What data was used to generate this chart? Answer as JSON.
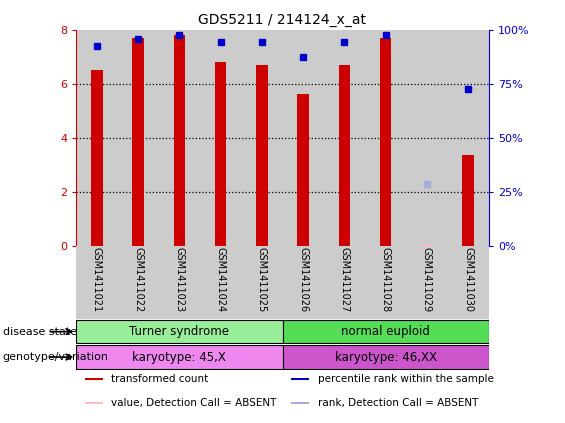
{
  "title": "GDS5211 / 214124_x_at",
  "samples": [
    "GSM1411021",
    "GSM1411022",
    "GSM1411023",
    "GSM1411024",
    "GSM1411025",
    "GSM1411026",
    "GSM1411027",
    "GSM1411028",
    "GSM1411029",
    "GSM1411030"
  ],
  "bar_values": [
    6.5,
    7.7,
    7.8,
    6.8,
    6.7,
    5.6,
    6.7,
    7.7,
    0.07,
    3.35
  ],
  "rank_values_right": [
    92.5,
    95.6,
    97.5,
    94.4,
    94.4,
    87.5,
    94.4,
    97.5,
    28.75,
    72.5
  ],
  "absent_bar_idx": 8,
  "absent_rank_idx": 8,
  "bar_color": "#cc0000",
  "rank_color": "#0000cc",
  "absent_bar_color": "#ffbbbb",
  "absent_rank_color": "#aaaadd",
  "ylim_left": [
    0,
    8
  ],
  "ylim_right": [
    0,
    100
  ],
  "yticks_left": [
    0,
    2,
    4,
    6,
    8
  ],
  "yticks_right": [
    0,
    25,
    50,
    75,
    100
  ],
  "ytick_labels_right": [
    "0%",
    "25%",
    "50%",
    "75%",
    "100%"
  ],
  "disease_state_label1": "Turner syndrome",
  "disease_state_label2": "normal euploid",
  "genotype_label1": "karyotype: 45,X",
  "genotype_label2": "karyotype: 46,XX",
  "disease_color1": "#99ee99",
  "disease_color2": "#55dd55",
  "genotype_color1": "#ee88ee",
  "genotype_color2": "#cc55cc",
  "row_label1": "disease state",
  "row_label2": "genotype/variation",
  "legend_items": [
    {
      "label": "transformed count",
      "color": "#cc0000"
    },
    {
      "label": "percentile rank within the sample",
      "color": "#0000cc"
    },
    {
      "label": "value, Detection Call = ABSENT",
      "color": "#ffbbbb"
    },
    {
      "label": "rank, Detection Call = ABSENT",
      "color": "#aaaadd"
    }
  ],
  "background_color": "#ffffff",
  "tick_area_color": "#cccccc",
  "gridline_color": "#000000",
  "bar_width": 0.28,
  "n_group1": 5,
  "n_group2": 5
}
